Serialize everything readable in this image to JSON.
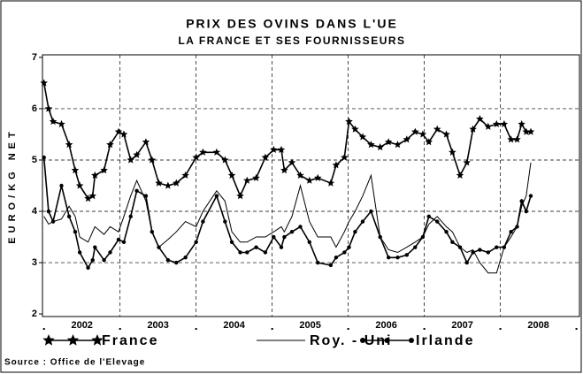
{
  "chart_data": {
    "type": "line",
    "title": "PRIX DES OVINS DANS L'UE",
    "subtitle": "LA FRANCE ET SES FOURNISSEURS",
    "y_label": "EURO/KG NET",
    "source": "Source : Office de l'Elevage",
    "x": [
      2002.0,
      2002.06,
      2002.12,
      2002.23,
      2002.33,
      2002.41,
      2002.47,
      2002.58,
      2002.64,
      2002.67,
      2002.79,
      2002.87,
      2002.98,
      2003.05,
      2003.14,
      2003.22,
      2003.34,
      2003.42,
      2003.51,
      2003.63,
      2003.74,
      2003.86,
      2004.0,
      2004.09,
      2004.27,
      2004.38,
      2004.47,
      2004.58,
      2004.67,
      2004.79,
      2004.91,
      2005.02,
      2005.12,
      2005.16,
      2005.26,
      2005.37,
      2005.49,
      2005.6,
      2005.77,
      2005.84,
      2005.95,
      2006.01,
      2006.09,
      2006.19,
      2006.3,
      2006.42,
      2006.53,
      2006.65,
      2006.77,
      2006.88,
      2006.98,
      2007.06,
      2007.17,
      2007.29,
      2007.37,
      2007.47,
      2007.56,
      2007.64,
      2007.73,
      2007.84,
      2007.95,
      2008.05,
      2008.14,
      2008.22,
      2008.28,
      2008.34,
      2008.4
    ],
    "series": [
      {
        "name": "France",
        "color": "#000000",
        "marker": "star",
        "values": [
          6.5,
          6.0,
          5.75,
          5.7,
          5.3,
          4.8,
          4.5,
          4.25,
          4.3,
          4.7,
          4.8,
          5.3,
          5.55,
          5.5,
          5.0,
          5.1,
          5.35,
          5.0,
          4.55,
          4.5,
          4.55,
          4.7,
          5.05,
          5.15,
          5.15,
          5.0,
          4.7,
          4.3,
          4.6,
          4.65,
          5.05,
          5.2,
          5.2,
          4.8,
          4.95,
          4.7,
          4.6,
          4.65,
          4.55,
          4.9,
          5.05,
          5.75,
          5.6,
          5.45,
          5.3,
          5.25,
          5.35,
          5.3,
          5.4,
          5.55,
          5.5,
          5.35,
          5.6,
          5.5,
          5.15,
          4.7,
          4.95,
          5.6,
          5.8,
          5.65,
          5.7,
          5.7,
          5.4,
          5.4,
          5.7,
          5.55,
          5.55
        ]
      },
      {
        "name": "Roy. - Uni",
        "color": "#000000",
        "marker": "none",
        "values": [
          3.9,
          3.75,
          3.8,
          3.85,
          4.1,
          3.9,
          3.5,
          3.4,
          3.6,
          3.7,
          3.55,
          3.7,
          3.6,
          3.9,
          4.3,
          4.6,
          4.2,
          3.6,
          3.3,
          3.45,
          3.6,
          3.8,
          3.7,
          4.0,
          4.4,
          4.2,
          3.6,
          3.4,
          3.4,
          3.5,
          3.5,
          3.6,
          3.7,
          3.6,
          3.9,
          4.5,
          3.8,
          3.5,
          3.5,
          3.3,
          3.6,
          3.8,
          4.0,
          4.3,
          4.7,
          3.5,
          3.25,
          3.2,
          3.3,
          3.4,
          3.5,
          3.75,
          3.9,
          3.7,
          3.6,
          3.3,
          3.2,
          3.25,
          3.0,
          2.8,
          2.8,
          3.3,
          3.5,
          3.7,
          4.1,
          4.3,
          4.95
        ]
      },
      {
        "name": "Irlande",
        "color": "#000000",
        "marker": "dot",
        "values": [
          5.05,
          4.0,
          3.8,
          4.5,
          3.9,
          3.6,
          3.2,
          2.9,
          3.05,
          3.3,
          3.05,
          3.2,
          3.45,
          3.4,
          3.9,
          4.4,
          4.3,
          3.6,
          3.3,
          3.05,
          3.0,
          3.1,
          3.4,
          3.8,
          4.3,
          3.8,
          3.4,
          3.2,
          3.2,
          3.3,
          3.2,
          3.5,
          3.3,
          3.5,
          3.6,
          3.7,
          3.4,
          3.0,
          2.95,
          3.1,
          3.2,
          3.3,
          3.6,
          3.8,
          4.0,
          3.5,
          3.1,
          3.1,
          3.15,
          3.3,
          3.5,
          3.9,
          3.8,
          3.6,
          3.4,
          3.3,
          3.0,
          3.2,
          3.25,
          3.2,
          3.3,
          3.3,
          3.6,
          3.7,
          4.2,
          4.0,
          4.3
        ]
      }
    ],
    "xlim": [
      2001.98,
      2009.04
    ],
    "xticks": [
      {
        "value": 2002.5,
        "label": "2002"
      },
      {
        "value": 2003.5,
        "label": "2003"
      },
      {
        "value": 2004.5,
        "label": "2004"
      },
      {
        "value": 2005.5,
        "label": "2005"
      },
      {
        "value": 2006.5,
        "label": "2006"
      },
      {
        "value": 2007.5,
        "label": "2007"
      },
      {
        "value": 2008.5,
        "label": "2008"
      }
    ],
    "xminor": [
      2002,
      2003,
      2004,
      2005,
      2006,
      2007,
      2008,
      2009
    ],
    "xgrid": [
      2003,
      2004,
      2005,
      2006,
      2007,
      2008
    ],
    "ylim": [
      1.95,
      7.05
    ],
    "yticks": [
      2,
      3,
      4,
      5,
      6,
      7
    ],
    "ygrid": [
      3,
      4,
      5,
      6
    ],
    "legend": "bottom"
  }
}
